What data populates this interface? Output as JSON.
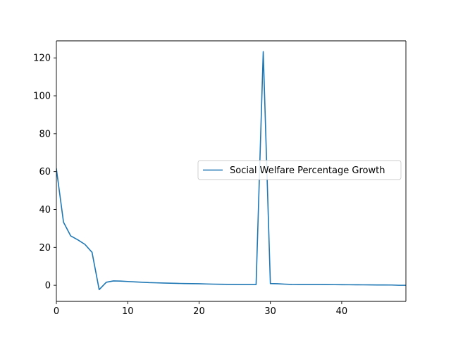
{
  "chart_data": {
    "type": "line",
    "title": "",
    "xlabel": "",
    "ylabel": "",
    "xlim": [
      0,
      49
    ],
    "ylim": [
      -8.5,
      129
    ],
    "xticks": [
      0,
      10,
      20,
      30,
      40
    ],
    "yticks": [
      0,
      20,
      40,
      60,
      80,
      100,
      120
    ],
    "grid": false,
    "legend_position": "center-right",
    "series": [
      {
        "name": "Social Welfare Percentage Growth",
        "color": "#1f77b4",
        "x": [
          0,
          1,
          2,
          3,
          4,
          5,
          6,
          7,
          8,
          9,
          10,
          11,
          12,
          13,
          14,
          15,
          16,
          17,
          18,
          19,
          20,
          21,
          22,
          23,
          24,
          25,
          26,
          27,
          28,
          29,
          30,
          31,
          32,
          33,
          34,
          35,
          36,
          37,
          38,
          39,
          40,
          41,
          42,
          43,
          44,
          45,
          46,
          47,
          48,
          49
        ],
        "y": [
          61.5,
          33.3,
          26.1,
          24.0,
          21.6,
          17.4,
          -2.3,
          1.6,
          2.3,
          2.2,
          2.0,
          1.8,
          1.6,
          1.4,
          1.3,
          1.2,
          1.1,
          1.0,
          0.9,
          0.85,
          0.8,
          0.7,
          0.6,
          0.55,
          0.5,
          0.45,
          0.4,
          0.4,
          0.4,
          123.3,
          0.9,
          0.8,
          0.6,
          0.45,
          0.4,
          0.4,
          0.4,
          0.38,
          0.35,
          0.33,
          0.3,
          0.28,
          0.25,
          0.23,
          0.2,
          0.18,
          0.16,
          0.14,
          0.0,
          0.0
        ]
      }
    ]
  }
}
